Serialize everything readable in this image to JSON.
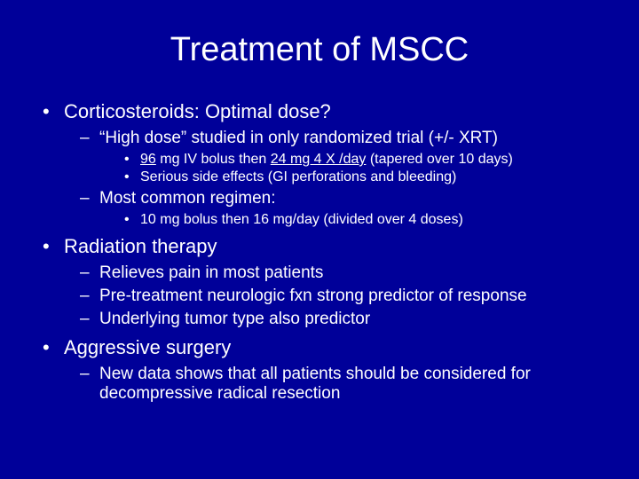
{
  "title": "Treatment of MSCC",
  "b1": "Corticosteroids: Optimal dose?",
  "b1a": "“High dose” studied in only randomized trial (+/- XRT)",
  "b1a1_a": "96",
  "b1a1_b": " mg IV bolus then ",
  "b1a1_c": "24 mg 4 X /day",
  "b1a1_d": " (tapered over 10 days)",
  "b1a2": "Serious side effects (GI perforations and bleeding)",
  "b1b": "Most common regimen:",
  "b1b1": "10 mg bolus then 16 mg/day (divided over 4 doses)",
  "b2": "Radiation therapy",
  "b2a": "Relieves pain in most patients",
  "b2b": "Pre-treatment neurologic fxn strong predictor of response",
  "b2c": "Underlying tumor type also predictor",
  "b3": "Aggressive surgery",
  "b3a": "New data shows that all patients should be considered for decompressive radical resection"
}
